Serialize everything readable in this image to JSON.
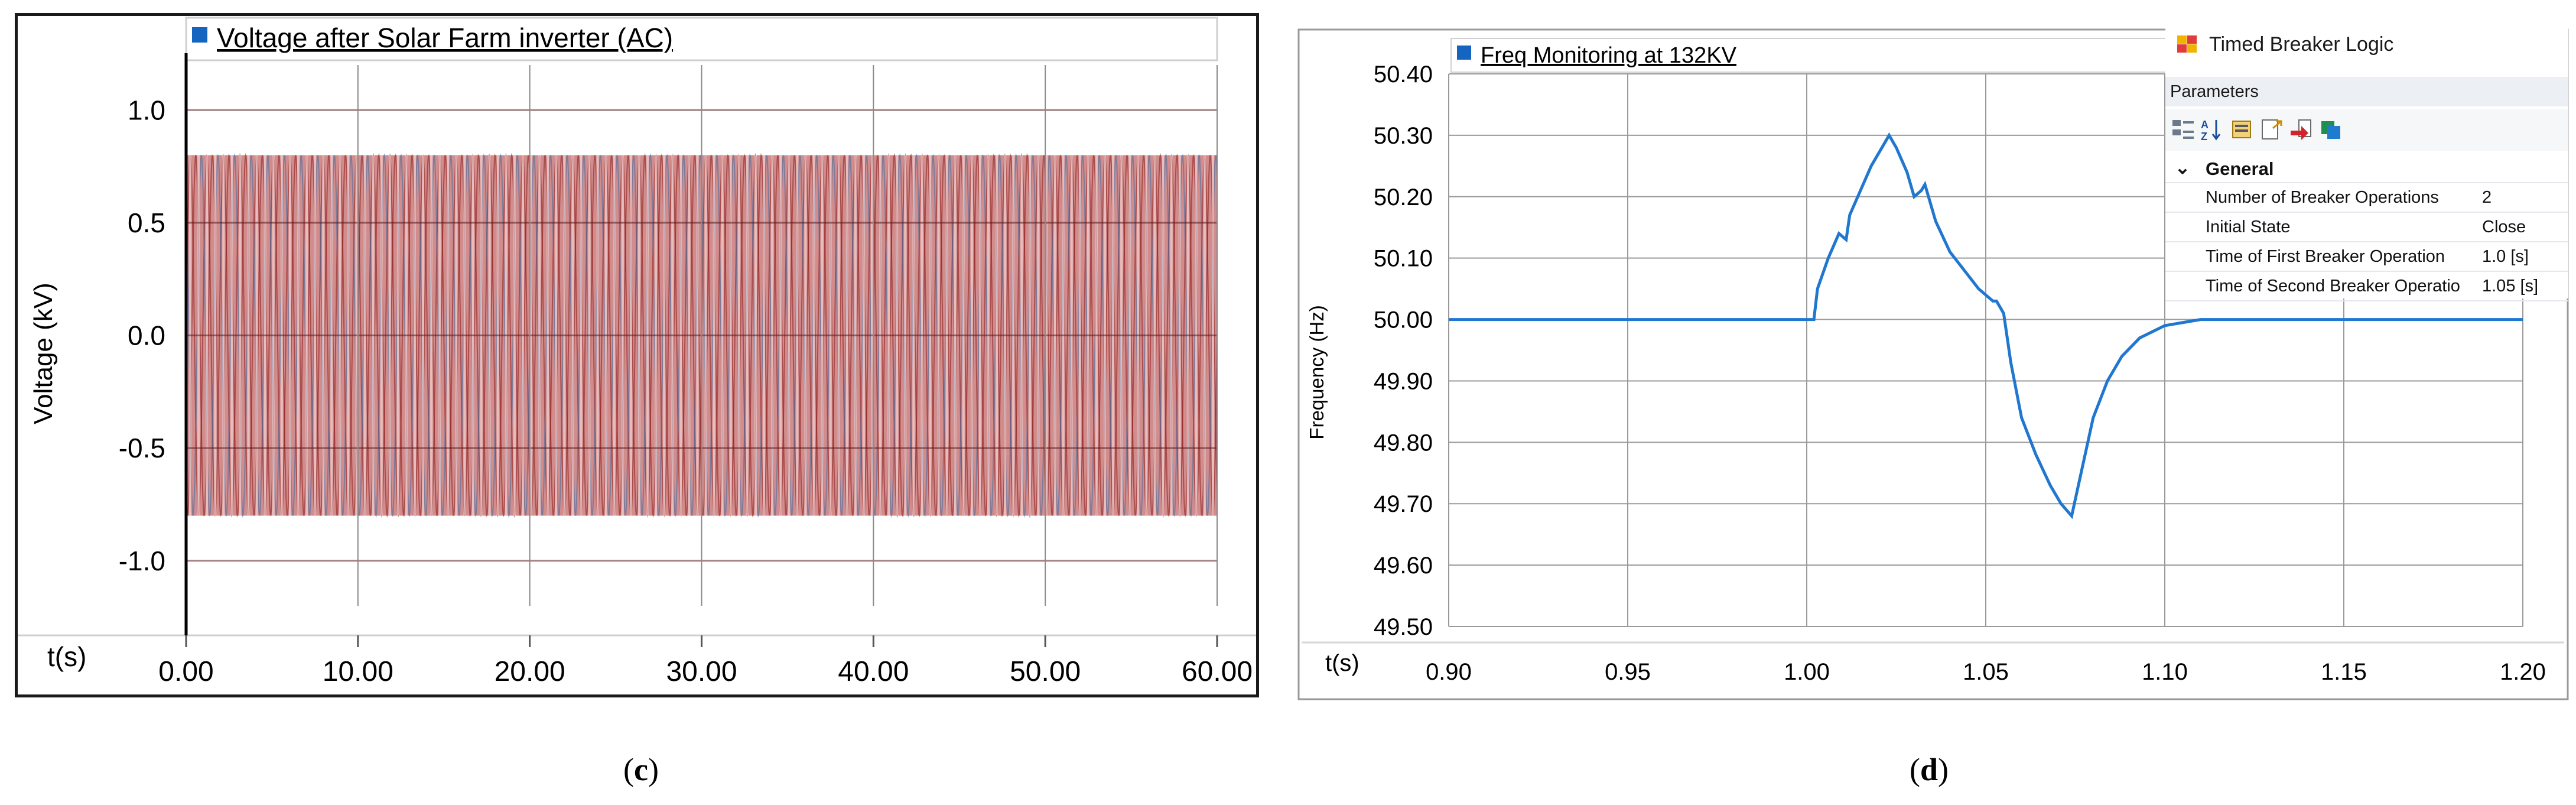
{
  "panel_c": {
    "legend_label": "Voltage after Solar Farm inverter (AC)",
    "ylabel": "Voltage (kV)",
    "xlabel": "t(s)",
    "caption": "c"
  },
  "panel_d": {
    "legend_label": "Freq Monitoring at 132KV",
    "ylabel": "Frequency (Hz)",
    "xlabel": "t(s)",
    "caption": "d"
  },
  "parameters_panel": {
    "title": "Timed Breaker Logic",
    "subheader": "Parameters",
    "group": "General",
    "rows": [
      {
        "name": "Number of Breaker Operations",
        "value": "2"
      },
      {
        "name": "Initial State",
        "value": "Close"
      },
      {
        "name": "Time of First Breaker Operation",
        "value": "1.0 [s]"
      },
      {
        "name": "Time of Second Breaker Operatio",
        "value": "1.05 [s]"
      }
    ]
  },
  "colors": {
    "frequency_line": "#1f77d0",
    "legend_marker": "#1565c0",
    "voltage_fill": "#c06060",
    "voltage_trace_blue": "#3a6ea5",
    "voltage_trace_red": "#8b1a1a"
  },
  "chart_data": [
    {
      "type": "line",
      "name": "panel-c-voltage",
      "title": "Voltage after Solar Farm inverter (AC)",
      "xlabel": "t(s)",
      "ylabel": "Voltage (kV)",
      "xlim": [
        0,
        60
      ],
      "ylim": [
        -1.2,
        1.2
      ],
      "xticks": [
        "0.00",
        "10.00",
        "20.00",
        "30.00",
        "40.00",
        "50.00",
        "60.00"
      ],
      "yticks": [
        "1.0",
        "0.5",
        "0.0",
        "-0.5",
        "-1.0"
      ],
      "grid": true,
      "series": [
        {
          "name": "Voltage after Solar Farm inverter (AC)",
          "kind": "three-phase AC envelope",
          "amplitude": 0.8,
          "band_min": -0.8,
          "band_max": 0.8,
          "x": [
            0,
            60
          ]
        }
      ]
    },
    {
      "type": "line",
      "name": "panel-d-frequency",
      "title": "Freq Monitoring at 132KV",
      "xlabel": "t(s)",
      "ylabel": "Frequency (Hz)",
      "xlim": [
        0.9,
        1.2
      ],
      "ylim": [
        49.5,
        50.4
      ],
      "xticks": [
        "0.90",
        "0.95",
        "1.00",
        "1.05",
        "1.10",
        "1.15",
        "1.20"
      ],
      "yticks": [
        "50.40",
        "50.30",
        "50.20",
        "50.10",
        "50.00",
        "49.90",
        "49.80",
        "49.70",
        "49.60",
        "49.50"
      ],
      "grid": true,
      "series": [
        {
          "name": "Freq Monitoring at 132KV",
          "x": [
            0.9,
            1.0,
            1.002,
            1.003,
            1.006,
            1.009,
            1.011,
            1.012,
            1.015,
            1.018,
            1.021,
            1.023,
            1.025,
            1.028,
            1.03,
            1.032,
            1.033,
            1.036,
            1.04,
            1.044,
            1.048,
            1.05,
            1.052,
            1.053,
            1.055,
            1.057,
            1.06,
            1.064,
            1.068,
            1.071,
            1.074,
            1.077,
            1.08,
            1.084,
            1.088,
            1.093,
            1.1,
            1.11,
            1.12,
            1.2
          ],
          "y": [
            50.0,
            50.0,
            50.0,
            50.05,
            50.1,
            50.14,
            50.13,
            50.17,
            50.21,
            50.25,
            50.28,
            50.3,
            50.28,
            50.24,
            50.2,
            50.21,
            50.22,
            50.16,
            50.11,
            50.08,
            50.05,
            50.04,
            50.03,
            50.03,
            50.01,
            49.93,
            49.84,
            49.78,
            49.73,
            49.7,
            49.68,
            49.76,
            49.84,
            49.9,
            49.94,
            49.97,
            49.99,
            50.0,
            50.0,
            50.0
          ]
        }
      ]
    }
  ]
}
